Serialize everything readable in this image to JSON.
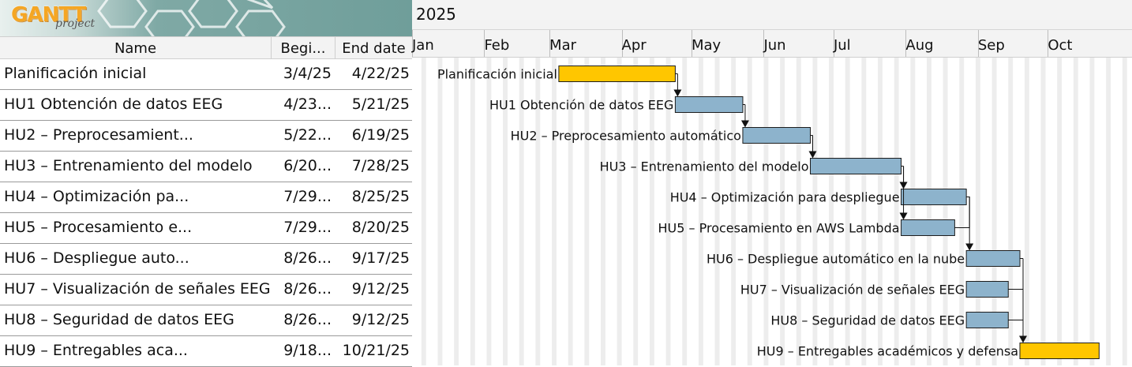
{
  "app": {
    "logo_text": "GANTT",
    "logo_sub": "project"
  },
  "columns": {
    "name": "Name",
    "begin": "Begi...",
    "end": "End date"
  },
  "timeline": {
    "year": "2025",
    "months": [
      "Jan",
      "Feb",
      "Mar",
      "Apr",
      "May",
      "Jun",
      "Jul",
      "Aug",
      "Sep",
      "Oct"
    ]
  },
  "tasks": [
    {
      "name": "Planificación inicial",
      "begin": "3/4/25",
      "end": "4/22/25",
      "label": "Planificación inicial",
      "start_date": "2025-03-04",
      "end_date": "2025-04-22",
      "color": "#ffc600"
    },
    {
      "name": "HU1 Obtención de datos EEG",
      "begin": "4/23...",
      "end": "5/21/25",
      "label": "HU1 Obtención de datos EEG",
      "start_date": "2025-04-23",
      "end_date": "2025-05-21",
      "color": "#8db3cc"
    },
    {
      "name": "HU2 – Preprocesamient...",
      "begin": "5/22...",
      "end": "6/19/25",
      "label": "HU2 – Preprocesamiento automático",
      "start_date": "2025-05-22",
      "end_date": "2025-06-19",
      "color": "#8db3cc"
    },
    {
      "name": "HU3 – Entrenamiento del modelo",
      "begin": "6/20...",
      "end": "7/28/25",
      "label": "HU3 – Entrenamiento del modelo",
      "start_date": "2025-06-20",
      "end_date": "2025-07-28",
      "color": "#8db3cc"
    },
    {
      "name": "HU4 – Optimización pa...",
      "begin": "7/29...",
      "end": "8/25/25",
      "label": "HU4 – Optimización para despliegue",
      "start_date": "2025-07-29",
      "end_date": "2025-08-25",
      "color": "#8db3cc"
    },
    {
      "name": "HU5 – Procesamiento e...",
      "begin": "7/29...",
      "end": "8/20/25",
      "label": "HU5 – Procesamiento en AWS Lambda",
      "start_date": "2025-07-29",
      "end_date": "2025-08-20",
      "color": "#8db3cc"
    },
    {
      "name": "HU6 – Despliegue auto...",
      "begin": "8/26...",
      "end": "9/17/25",
      "label": "HU6 – Despliegue automático en la nube",
      "start_date": "2025-08-26",
      "end_date": "2025-09-17",
      "color": "#8db3cc"
    },
    {
      "name": "HU7 – Visualización de señales EEG",
      "begin": "8/26...",
      "end": "9/12/25",
      "label": "HU7 – Visualización de señales EEG",
      "start_date": "2025-08-26",
      "end_date": "2025-09-12",
      "color": "#8db3cc"
    },
    {
      "name": "HU8 – Seguridad de datos EEG",
      "begin": "8/26...",
      "end": "9/12/25",
      "label": "HU8 – Seguridad de datos EEG",
      "start_date": "2025-08-26",
      "end_date": "2025-09-12",
      "color": "#8db3cc"
    },
    {
      "name": "HU9 – Entregables aca...",
      "begin": "9/18...",
      "end": "10/21/25",
      "label": "HU9 – Entregables académicos y defensa",
      "start_date": "2025-09-18",
      "end_date": "2025-10-21",
      "color": "#ffc600"
    }
  ]
}
